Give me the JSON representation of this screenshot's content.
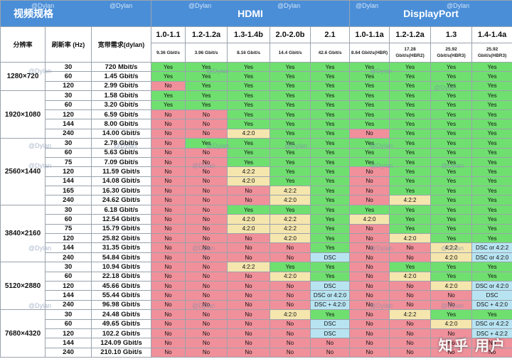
{
  "title": "视频规格",
  "groups": {
    "hdmi": "HDMI",
    "dp": "DisplayPort"
  },
  "watermark": "@Dylan",
  "brand": "知乎 用户",
  "columns": {
    "resolution": "分辨率",
    "refresh": "刷新率 (Hz)",
    "bandwidth": "宽带需求(dylan)"
  },
  "versions": [
    {
      "name": "1.0-1.1",
      "bw": "9.36 Gbit/s",
      "group": "hdmi"
    },
    {
      "name": "1.2-1.2a",
      "bw": "3.96 Gbit/s",
      "group": "hdmi"
    },
    {
      "name": "1.3-1.4b",
      "bw": "8.16 Gbit/s",
      "group": "hdmi"
    },
    {
      "name": "2.0-2.0b",
      "bw": "14.4 Gbit/s",
      "group": "hdmi"
    },
    {
      "name": "2.1",
      "bw": "42.6 Gbit/s",
      "group": "hdmi"
    },
    {
      "name": "1.0-1.1a",
      "bw": "8.64 Gbit/s(HBR)",
      "group": "dp"
    },
    {
      "name": "1.2-1.2a",
      "bw": "17.28 Gbit/s(HBR2)",
      "group": "dp"
    },
    {
      "name": "1.3",
      "bw": "25.92 Gbit/s(HBR3)",
      "group": "dp"
    },
    {
      "name": "1.4-1.4a",
      "bw": "25.92 Gbit/s(HBR3)",
      "group": "dp"
    }
  ],
  "sections": [
    {
      "resolution": "1280×720",
      "rows": [
        {
          "hz": "30",
          "bw": "720 Mbit/s",
          "cells": [
            "Yes",
            "Yes",
            "Yes",
            "Yes",
            "Yes",
            "Yes",
            "Yes",
            "Yes",
            "Yes"
          ]
        },
        {
          "hz": "60",
          "bw": "1.45 Gbit/s",
          "cells": [
            "Yes",
            "Yes",
            "Yes",
            "Yes",
            "Yes",
            "Yes",
            "Yes",
            "Yes",
            "Yes"
          ]
        },
        {
          "hz": "120",
          "bw": "2.99 Gbit/s",
          "cells": [
            "No",
            "Yes",
            "Yes",
            "Yes",
            "Yes",
            "Yes",
            "Yes",
            "Yes",
            "Yes"
          ]
        }
      ]
    },
    {
      "resolution": "1920×1080",
      "rows": [
        {
          "hz": "30",
          "bw": "1.58 Gbit/s",
          "cells": [
            "Yes",
            "Yes",
            "Yes",
            "Yes",
            "Yes",
            "Yes",
            "Yes",
            "Yes",
            "Yes"
          ]
        },
        {
          "hz": "60",
          "bw": "3.20 Gbit/s",
          "cells": [
            "Yes",
            "Yes",
            "Yes",
            "Yes",
            "Yes",
            "Yes",
            "Yes",
            "Yes",
            "Yes"
          ]
        },
        {
          "hz": "120",
          "bw": "6.59 Gbit/s",
          "cells": [
            "No",
            "No",
            "Yes",
            "Yes",
            "Yes",
            "Yes",
            "Yes",
            "Yes",
            "Yes"
          ]
        },
        {
          "hz": "144",
          "bw": "8.00 Gbit/s",
          "cells": [
            "No",
            "No",
            "Yes",
            "Yes",
            "Yes",
            "Yes",
            "Yes",
            "Yes",
            "Yes"
          ]
        },
        {
          "hz": "240",
          "bw": "14.00 Gbit/s",
          "cells": [
            "No",
            "No",
            "4:2:0",
            "Yes",
            "Yes",
            "No",
            "Yes",
            "Yes",
            "Yes"
          ]
        }
      ]
    },
    {
      "resolution": "2560×1440",
      "rows": [
        {
          "hz": "30",
          "bw": "2.78 Gbit/s",
          "cells": [
            "No",
            "Yes",
            "Yes",
            "Yes",
            "Yes",
            "Yes",
            "Yes",
            "Yes",
            "Yes"
          ]
        },
        {
          "hz": "60",
          "bw": "5.63 Gbit/s",
          "cells": [
            "No",
            "No",
            "Yes",
            "Yes",
            "Yes",
            "Yes",
            "Yes",
            "Yes",
            "Yes"
          ]
        },
        {
          "hz": "75",
          "bw": "7.09 Gbit/s",
          "cells": [
            "No",
            "No",
            "Yes",
            "Yes",
            "Yes",
            "Yes",
            "Yes",
            "Yes",
            "Yes"
          ]
        },
        {
          "hz": "120",
          "bw": "11.59 Gbit/s",
          "cells": [
            "No",
            "No",
            "4:2:2",
            "Yes",
            "Yes",
            "No",
            "Yes",
            "Yes",
            "Yes"
          ]
        },
        {
          "hz": "144",
          "bw": "14.08 Gbit/s",
          "cells": [
            "No",
            "No",
            "4:2:0",
            "Yes",
            "Yes",
            "No",
            "Yes",
            "Yes",
            "Yes"
          ]
        },
        {
          "hz": "165",
          "bw": "16.30 Gbit/s",
          "cells": [
            "No",
            "No",
            "No",
            "4:2:2",
            "Yes",
            "No",
            "Yes",
            "Yes",
            "Yes"
          ]
        },
        {
          "hz": "240",
          "bw": "24.62 Gbit/s",
          "cells": [
            "No",
            "No",
            "No",
            "4:2:0",
            "Yes",
            "No",
            "4:2:2",
            "Yes",
            "Yes"
          ]
        }
      ]
    },
    {
      "resolution": "3840×2160",
      "rows": [
        {
          "hz": "30",
          "bw": "6.18 Gbit/s",
          "cells": [
            "No",
            "No",
            "Yes",
            "Yes",
            "Yes",
            "Yes",
            "Yes",
            "Yes",
            "Yes"
          ]
        },
        {
          "hz": "60",
          "bw": "12.54 Gbit/s",
          "cells": [
            "No",
            "No",
            "4:2:0",
            "4:2:2",
            "Yes",
            "4:2:0",
            "Yes",
            "Yes",
            "Yes"
          ]
        },
        {
          "hz": "75",
          "bw": "15.79 Gbit/s",
          "cells": [
            "No",
            "No",
            "4:2:0",
            "4:2:2",
            "Yes",
            "No",
            "Yes",
            "Yes",
            "Yes"
          ]
        },
        {
          "hz": "120",
          "bw": "25.82 Gbit/s",
          "cells": [
            "No",
            "No",
            "No",
            "4:2:0",
            "Yes",
            "No",
            "4:2:0",
            "Yes",
            "Yes"
          ]
        },
        {
          "hz": "144",
          "bw": "31.35 Gbit/s",
          "cells": [
            "No",
            "No",
            "No",
            "No",
            "Yes",
            "No",
            "No",
            "4:2:2",
            "DSC or 4:2:2"
          ]
        },
        {
          "hz": "240",
          "bw": "54.84 Gbit/s",
          "cells": [
            "No",
            "No",
            "No",
            "No",
            "DSC",
            "No",
            "No",
            "4:2:0",
            "DSC or 4:2:0"
          ]
        }
      ]
    },
    {
      "resolution": "5120×2880",
      "rows": [
        {
          "hz": "30",
          "bw": "10.94 Gbit/s",
          "cells": [
            "No",
            "No",
            "4:2:2",
            "Yes",
            "Yes",
            "No",
            "Yes",
            "Yes",
            "Yes"
          ]
        },
        {
          "hz": "60",
          "bw": "22.18 Gbit/s",
          "cells": [
            "No",
            "No",
            "No",
            "4:2:0",
            "Yes",
            "No",
            "4:2:0",
            "Yes",
            "Yes"
          ]
        },
        {
          "hz": "120",
          "bw": "45.66 Gbit/s",
          "cells": [
            "No",
            "No",
            "No",
            "No",
            "DSC",
            "No",
            "No",
            "4:2:0",
            "DSC or 4:2:0"
          ]
        },
        {
          "hz": "144",
          "bw": "55.44 Gbit/s",
          "cells": [
            "No",
            "No",
            "No",
            "No",
            "DSC or 4:2:0",
            "No",
            "No",
            "No",
            "DSC"
          ]
        },
        {
          "hz": "240",
          "bw": "96.98 Gbit/s",
          "cells": [
            "No",
            "No",
            "No",
            "No",
            "DSC + 4:2:0",
            "No",
            "No",
            "No",
            "DSC + 4:2:0"
          ]
        }
      ]
    },
    {
      "resolution": "7680×4320",
      "rows": [
        {
          "hz": "30",
          "bw": "24.48 Gbit/s",
          "cells": [
            "No",
            "No",
            "No",
            "4:2:0",
            "Yes",
            "No",
            "4:2:2",
            "Yes",
            "Yes"
          ]
        },
        {
          "hz": "60",
          "bw": "49.65 Gbit/s",
          "cells": [
            "No",
            "No",
            "No",
            "No",
            "DSC",
            "No",
            "No",
            "4:2:0",
            "DSC or 4:2:2"
          ]
        },
        {
          "hz": "120",
          "bw": "102.2 Gbit/s",
          "cells": [
            "No",
            "No",
            "No",
            "No",
            "DSC",
            "No",
            "No",
            "No",
            "DSC + 4:2:2"
          ]
        },
        {
          "hz": "144",
          "bw": "124.09 Gbit/s",
          "cells": [
            "No",
            "No",
            "No",
            "No",
            "No",
            "No",
            "No",
            "No",
            "No"
          ]
        },
        {
          "hz": "240",
          "bw": "210.10 Gbit/s",
          "cells": [
            "No",
            "No",
            "No",
            "No",
            "No",
            "No",
            "No",
            "No",
            "No"
          ]
        }
      ]
    }
  ],
  "colors": {
    "yes": "#6fe06f",
    "no": "#f0909a",
    "chroma": "#f5e6ae",
    "dsc": "#b8e4f2",
    "header": "#4a8ed8"
  }
}
